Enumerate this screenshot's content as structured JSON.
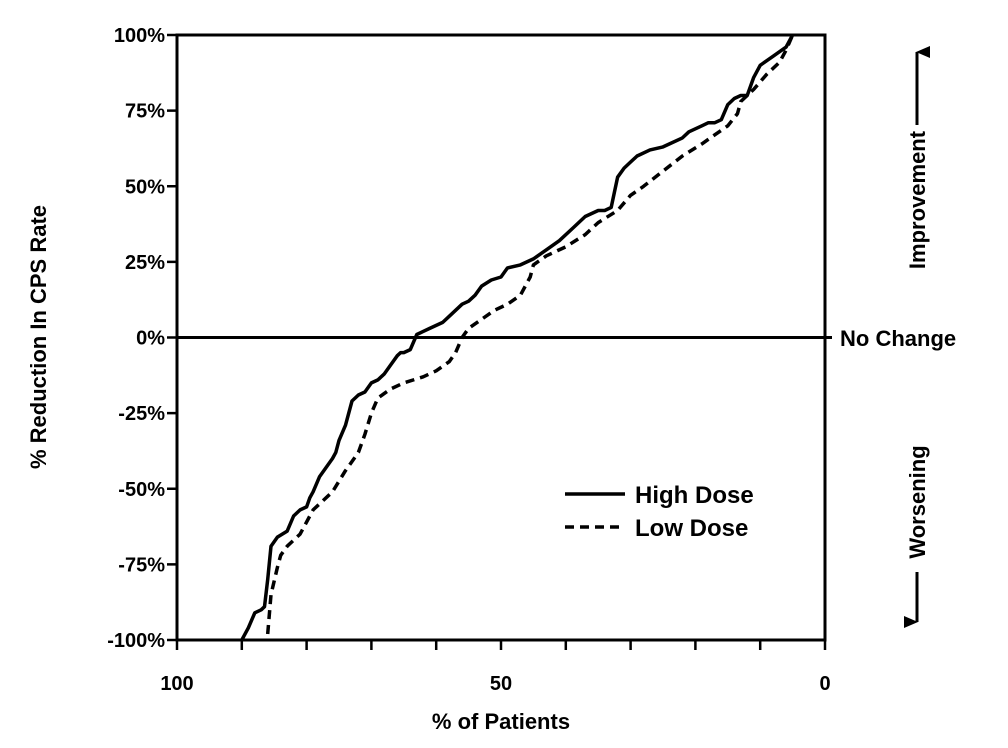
{
  "chart_data": {
    "type": "line",
    "title": "",
    "xlabel": "% of Patients",
    "ylabel": "% Reduction In CPS Rate",
    "xlim": [
      100,
      0
    ],
    "ylim": [
      -100,
      100
    ],
    "x_ticks": [
      100,
      90,
      80,
      70,
      60,
      50,
      40,
      30,
      20,
      10,
      0
    ],
    "x_tick_labels": [
      {
        "value": 100,
        "label": "100"
      },
      {
        "value": 50,
        "label": "50"
      },
      {
        "value": 0,
        "label": "0"
      }
    ],
    "y_tick_labels": [
      {
        "value": 100,
        "label": "100%"
      },
      {
        "value": 75,
        "label": "75%"
      },
      {
        "value": 50,
        "label": "50%"
      },
      {
        "value": 25,
        "label": "25%"
      },
      {
        "value": 0,
        "label": "0%"
      },
      {
        "value": -25,
        "label": "-25%"
      },
      {
        "value": -50,
        "label": "-50%"
      },
      {
        "value": -75,
        "label": "-75%"
      },
      {
        "value": -100,
        "label": "-100%"
      }
    ],
    "reference_line": {
      "y": 0,
      "label": "No Change"
    },
    "side_annotations": {
      "top": "Improvement",
      "bottom": "Worsening"
    },
    "legend_position": "lower-right",
    "grid": false,
    "series": [
      {
        "name": "High Dose",
        "style": "solid",
        "x": [
          90,
          89,
          88,
          87,
          86.5,
          86,
          85.5,
          84.5,
          83,
          82,
          81,
          80,
          79.5,
          79,
          78,
          77,
          76,
          75.5,
          75,
          74,
          73,
          72,
          71,
          70,
          69,
          68,
          67,
          66,
          65.5,
          65,
          64,
          63,
          62,
          61,
          60,
          59,
          58,
          57,
          56,
          55,
          54,
          53,
          51.5,
          50,
          49,
          47,
          45,
          43,
          41,
          39,
          37,
          35,
          34,
          33,
          32.5,
          32,
          31,
          30,
          29,
          27,
          25,
          24,
          22,
          21,
          20,
          19,
          18,
          17,
          16,
          15,
          14,
          13,
          12.5,
          12,
          11,
          10,
          8,
          6,
          5
        ],
        "y": [
          -100,
          -96,
          -91,
          -90,
          -89,
          -80,
          -69,
          -66,
          -64,
          -59,
          -57,
          -56,
          -53,
          -51,
          -46,
          -43,
          -40,
          -38,
          -34,
          -29,
          -21,
          -19,
          -18,
          -15,
          -14,
          -12,
          -9,
          -6,
          -5,
          -5,
          -4,
          1,
          2,
          3,
          4,
          5,
          7,
          9,
          11,
          12,
          14,
          17,
          19,
          20,
          23,
          24,
          26,
          29,
          32,
          36,
          40,
          42,
          42,
          43,
          48,
          53,
          56,
          58,
          60,
          62,
          63,
          64,
          66,
          68,
          69,
          70,
          71,
          71,
          72,
          77,
          79,
          80,
          80,
          80,
          86,
          90,
          93,
          96,
          100
        ]
      },
      {
        "name": "Low Dose",
        "style": "dashed",
        "x": [
          86,
          85.5,
          84.5,
          84,
          83,
          81,
          79,
          76,
          74,
          73,
          72,
          71,
          70,
          69,
          67,
          65,
          62,
          60,
          58,
          57,
          56,
          55,
          53,
          51,
          49,
          47,
          45.5,
          45,
          43,
          40,
          37,
          35,
          32,
          30,
          28,
          25,
          22,
          19,
          17,
          15,
          13.5,
          13,
          11,
          9,
          7,
          6,
          5
        ],
        "y": [
          -98,
          -85,
          -76,
          -72,
          -69,
          -65,
          -57,
          -51,
          -44,
          -41,
          -38,
          -32,
          -25,
          -20,
          -17,
          -15,
          -13,
          -11,
          -8,
          -5,
          0,
          3,
          6,
          9,
          11,
          14,
          20,
          24,
          27,
          30,
          34,
          38,
          42,
          47,
          50,
          55,
          60,
          64,
          67,
          70,
          74,
          78,
          82,
          87,
          91,
          95,
          100
        ]
      }
    ]
  }
}
